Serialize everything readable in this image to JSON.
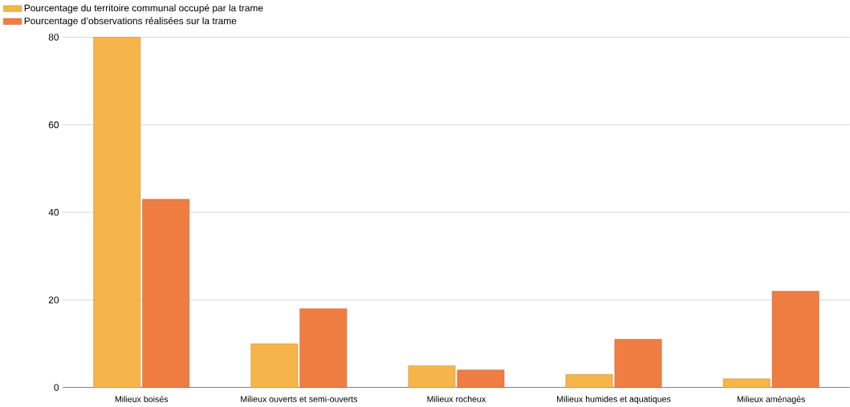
{
  "chart_data": {
    "type": "bar",
    "categories": [
      "Milieux boisés",
      "Milieux ouverts et semi-ouverts",
      "Milieux rocheux",
      "Milieux humides et aquatiques",
      "Milieux aménagés"
    ],
    "series": [
      {
        "name": "Pourcentage du territoire communal occupé par la trame",
        "color": "#f5b54a",
        "values": [
          80,
          10,
          5,
          3,
          2
        ]
      },
      {
        "name": "Pourcentage d’observations réalisées sur la trame",
        "color": "#ef7d42",
        "values": [
          43,
          18,
          4,
          11,
          22
        ]
      }
    ],
    "ylim": [
      0,
      80
    ],
    "yticks": [
      0,
      20,
      40,
      60,
      80
    ],
    "grid": "y",
    "legend": "top left"
  }
}
